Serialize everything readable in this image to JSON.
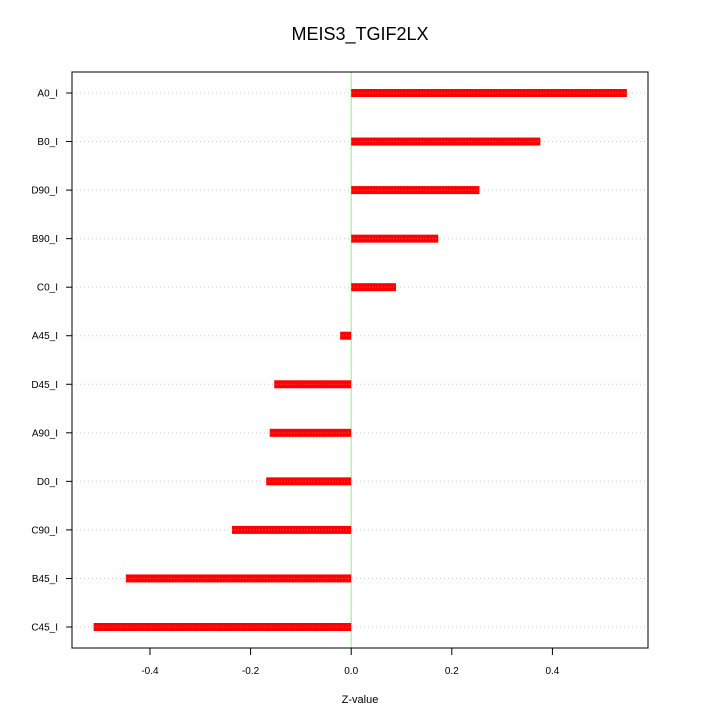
{
  "chart_data": {
    "type": "bar",
    "orientation": "horizontal",
    "title": "MEIS3_TGIF2LX",
    "xlabel": "Z-value",
    "ylabel": "",
    "categories": [
      "A0_I",
      "B0_I",
      "D90_I",
      "B90_I",
      "C0_I",
      "A45_I",
      "D45_I",
      "A90_I",
      "D0_I",
      "C90_I",
      "B45_I",
      "C45_I"
    ],
    "values": [
      0.548,
      0.376,
      0.255,
      0.173,
      0.089,
      -0.022,
      -0.153,
      -0.162,
      -0.169,
      -0.237,
      -0.448,
      -0.512
    ],
    "xlim": [
      -0.555,
      0.59
    ],
    "xticks": [
      -0.4,
      -0.2,
      0.0,
      0.2,
      0.4
    ],
    "xtick_labels": [
      "-0.4",
      "-0.2",
      "0.0",
      "0.2",
      "0.4"
    ],
    "reference_line": 0,
    "grid": "horizontal dotted",
    "legend": "none",
    "colors": {
      "bar": "#ff0000",
      "bar_highlight": "#ff5a5a",
      "zero_line": "#7cff6b",
      "grid": "#cfcfcf",
      "axis": "#000000"
    }
  }
}
